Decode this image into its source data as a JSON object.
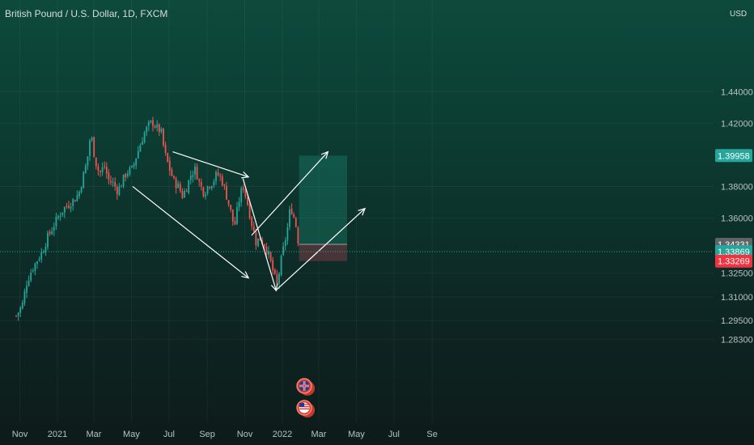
{
  "title": "British Pound / U.S. Dollar, 1D, FXCM",
  "currency": "USD",
  "colors": {
    "up": "#26a69a",
    "down": "#ef5350",
    "target_zone": "#1e8c76",
    "stop_zone": "#7a3c44",
    "arrow": "#ffffff"
  },
  "chart_data": {
    "type": "candlestick",
    "title": "British Pound / U.S. Dollar, 1D, FXCM",
    "x_ticks": [
      "Nov",
      "2021",
      "Mar",
      "May",
      "Jul",
      "Sep",
      "Nov",
      "2022",
      "Mar",
      "May",
      "Jul",
      "Se"
    ],
    "y_ticks": [
      "1.28300",
      "1.29500",
      "1.31000",
      "1.32500",
      "1.36000",
      "1.38000",
      "1.42000",
      "1.44000"
    ],
    "ylim": [
      1.278,
      1.448
    ],
    "price_tags": [
      {
        "label": "1.39958",
        "value": 1.39958,
        "role": "target"
      },
      {
        "label": "1.34331",
        "value": 1.34331,
        "role": "entry"
      },
      {
        "label": "1.33869",
        "value": 1.33869,
        "role": "current"
      },
      {
        "label": "1.33269",
        "value": 1.33269,
        "role": "stop"
      }
    ],
    "position": {
      "start": "2022-01-28",
      "end": "2022-04-16",
      "entry": 1.34331,
      "target": 1.39958,
      "stop": 1.33269
    },
    "series": [
      {
        "type": "close",
        "points": [
          [
            "2020-10-26",
            1.298
          ],
          [
            "2020-11-05",
            1.305
          ],
          [
            "2020-11-12",
            1.319
          ],
          [
            "2020-11-20",
            1.327
          ],
          [
            "2020-11-30",
            1.334
          ],
          [
            "2020-12-08",
            1.339
          ],
          [
            "2020-12-15",
            1.347
          ],
          [
            "2020-12-23",
            1.353
          ],
          [
            "2021-01-04",
            1.362
          ],
          [
            "2021-01-11",
            1.366
          ],
          [
            "2021-01-20",
            1.369
          ],
          [
            "2021-01-29",
            1.372
          ],
          [
            "2021-02-05",
            1.376
          ],
          [
            "2021-02-12",
            1.387
          ],
          [
            "2021-02-18",
            1.396
          ],
          [
            "2021-02-24",
            1.414
          ],
          [
            "2021-03-03",
            1.397
          ],
          [
            "2021-03-10",
            1.388
          ],
          [
            "2021-03-18",
            1.393
          ],
          [
            "2021-03-25",
            1.384
          ],
          [
            "2021-04-01",
            1.382
          ],
          [
            "2021-04-09",
            1.377
          ],
          [
            "2021-04-16",
            1.383
          ],
          [
            "2021-04-23",
            1.389
          ],
          [
            "2021-05-03",
            1.391
          ],
          [
            "2021-05-07",
            1.397
          ],
          [
            "2021-05-14",
            1.405
          ],
          [
            "2021-05-21",
            1.413
          ],
          [
            "2021-05-28",
            1.418
          ],
          [
            "2021-06-04",
            1.421
          ],
          [
            "2021-06-11",
            1.417
          ],
          [
            "2021-06-18",
            1.415
          ],
          [
            "2021-06-24",
            1.401
          ],
          [
            "2021-07-02",
            1.391
          ],
          [
            "2021-07-09",
            1.383
          ],
          [
            "2021-07-16",
            1.38
          ],
          [
            "2021-07-23",
            1.374
          ],
          [
            "2021-07-30",
            1.38
          ],
          [
            "2021-08-06",
            1.388
          ],
          [
            "2021-08-13",
            1.391
          ],
          [
            "2021-08-20",
            1.381
          ],
          [
            "2021-08-27",
            1.376
          ],
          [
            "2021-09-03",
            1.381
          ],
          [
            "2021-09-10",
            1.383
          ],
          [
            "2021-09-17",
            1.388
          ],
          [
            "2021-09-24",
            1.385
          ],
          [
            "2021-10-01",
            1.376
          ],
          [
            "2021-10-08",
            1.366
          ],
          [
            "2021-10-15",
            1.354
          ],
          [
            "2021-10-22",
            1.37
          ],
          [
            "2021-10-29",
            1.381
          ],
          [
            "2021-11-05",
            1.37
          ],
          [
            "2021-11-12",
            1.357
          ],
          [
            "2021-11-19",
            1.345
          ],
          [
            "2021-11-26",
            1.347
          ],
          [
            "2021-12-03",
            1.343
          ],
          [
            "2021-12-10",
            1.336
          ],
          [
            "2021-12-17",
            1.326
          ],
          [
            "2021-12-23",
            1.317
          ],
          [
            "2021-12-30",
            1.333
          ],
          [
            "2022-01-06",
            1.347
          ],
          [
            "2022-01-11",
            1.357
          ],
          [
            "2022-01-14",
            1.368
          ],
          [
            "2022-01-20",
            1.36
          ],
          [
            "2022-01-25",
            1.352
          ],
          [
            "2022-01-28",
            1.339
          ]
        ]
      }
    ],
    "trend_arrows": [
      {
        "from": [
          "2021-05-03",
          1.38
        ],
        "to": [
          "2021-11-07",
          1.322
        ]
      },
      {
        "from": [
          "2021-07-07",
          1.402
        ],
        "to": [
          "2021-11-07",
          1.386
        ]
      },
      {
        "from": [
          "2021-10-29",
          1.385
        ],
        "to": [
          "2021-12-22",
          1.314
        ]
      },
      {
        "from": [
          "2021-11-12",
          1.349
        ],
        "to": [
          "2022-03-16",
          1.402
        ]
      },
      {
        "from": [
          "2021-12-21",
          1.314
        ],
        "to": [
          "2022-05-15",
          1.366
        ]
      }
    ],
    "event_markers": [
      {
        "icon": "uk-flag-icon",
        "date": "2022-01-26"
      },
      {
        "icon": "us-flag-icon",
        "date": "2022-01-26"
      }
    ]
  }
}
